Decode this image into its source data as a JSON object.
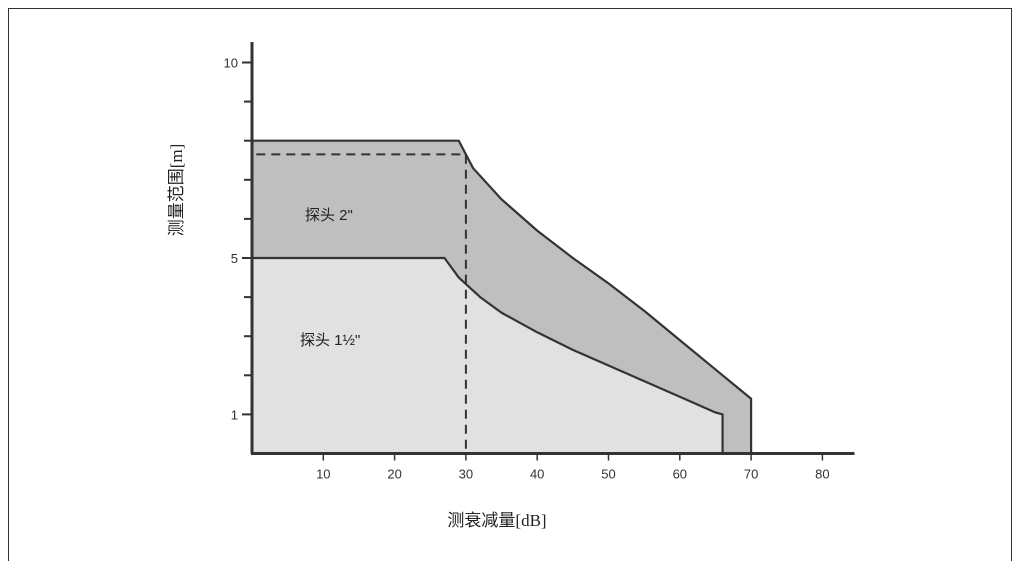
{
  "chart_data": {
    "type": "area",
    "title": "",
    "xlabel": "测衰减量[dB]",
    "ylabel": "测量范围[m]",
    "xlim": [
      0,
      85
    ],
    "ylim": [
      0,
      10
    ],
    "x_ticks": [
      10,
      20,
      30,
      40,
      50,
      60,
      70,
      80
    ],
    "y_tick_labels": [
      {
        "value": 1,
        "label": "1"
      },
      {
        "value": 5,
        "label": "5"
      },
      {
        "value": 10,
        "label": "10"
      }
    ],
    "y_minor_ticks": [
      2,
      3,
      4,
      6,
      7,
      8,
      9
    ],
    "series": [
      {
        "name": "探头 2\"",
        "color": "#bfbfbf",
        "x": [
          0,
          29,
          31,
          35,
          40,
          45,
          50,
          55,
          60,
          65,
          69,
          70,
          70
        ],
        "y": [
          8,
          8,
          7.3,
          6.5,
          5.7,
          5.0,
          4.35,
          3.65,
          2.9,
          2.15,
          1.55,
          1.4,
          0
        ]
      },
      {
        "name": "探头 1½\"",
        "color": "#e1e1e1",
        "x": [
          0,
          27,
          29,
          32,
          35,
          40,
          45,
          50,
          55,
          60,
          65,
          66,
          66
        ],
        "y": [
          5,
          5,
          4.5,
          4.0,
          3.6,
          3.1,
          2.65,
          2.25,
          1.85,
          1.45,
          1.05,
          1.0,
          0
        ]
      }
    ],
    "reference_line": {
      "x": 30,
      "y": 7.65,
      "style": "dashed"
    }
  }
}
